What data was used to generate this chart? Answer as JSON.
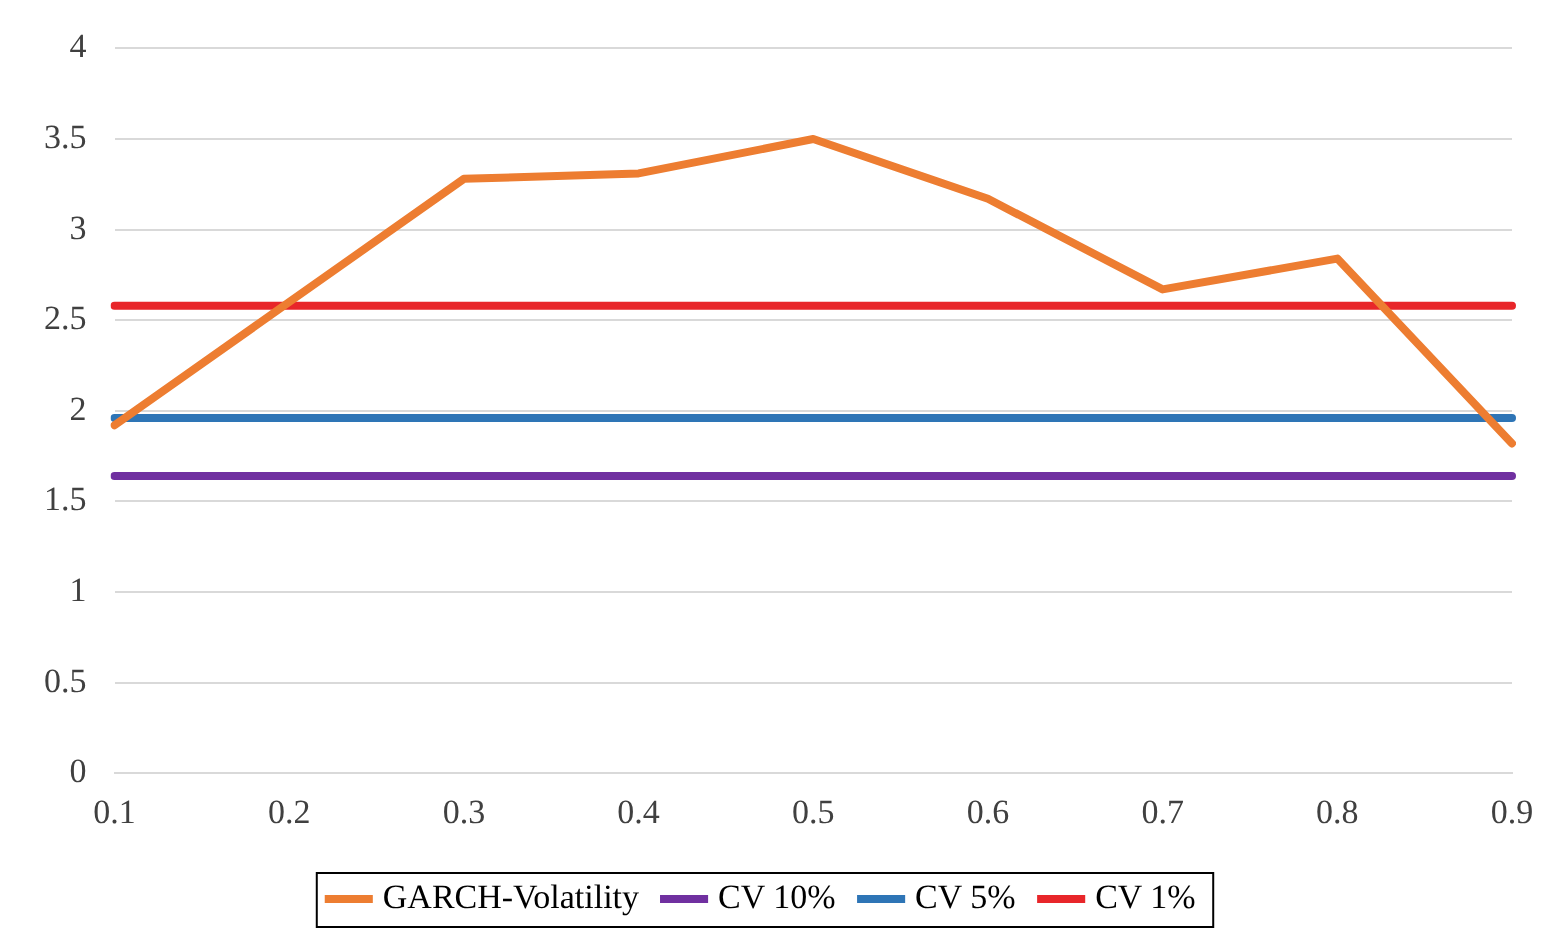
{
  "chart_data": {
    "type": "line",
    "categories": [
      "0.1",
      "0.2",
      "0.3",
      "0.4",
      "0.5",
      "0.6",
      "0.7",
      "0.8",
      "0.9"
    ],
    "series": [
      {
        "name": "GARCH-Volatility",
        "color": "#ed7d31",
        "values": [
          1.92,
          2.6,
          3.28,
          3.31,
          3.5,
          3.17,
          2.67,
          2.84,
          1.82
        ]
      },
      {
        "name": "CV 10%",
        "color": "#7030a0",
        "values": [
          1.64,
          1.64,
          1.64,
          1.64,
          1.64,
          1.64,
          1.64,
          1.64,
          1.64
        ]
      },
      {
        "name": "CV 5%",
        "color": "#2e75b6",
        "values": [
          1.96,
          1.96,
          1.96,
          1.96,
          1.96,
          1.96,
          1.96,
          1.96,
          1.96
        ]
      },
      {
        "name": "CV 1%",
        "color": "#e8262a",
        "values": [
          2.58,
          2.58,
          2.58,
          2.58,
          2.58,
          2.58,
          2.58,
          2.58,
          2.58
        ]
      }
    ],
    "ylim": [
      0,
      4
    ],
    "yticks": [
      0,
      0.5,
      1,
      1.5,
      2,
      2.5,
      3,
      3.5,
      4
    ],
    "grid": "y",
    "legend": "bottom",
    "marker": "none",
    "line_style": "solid"
  }
}
